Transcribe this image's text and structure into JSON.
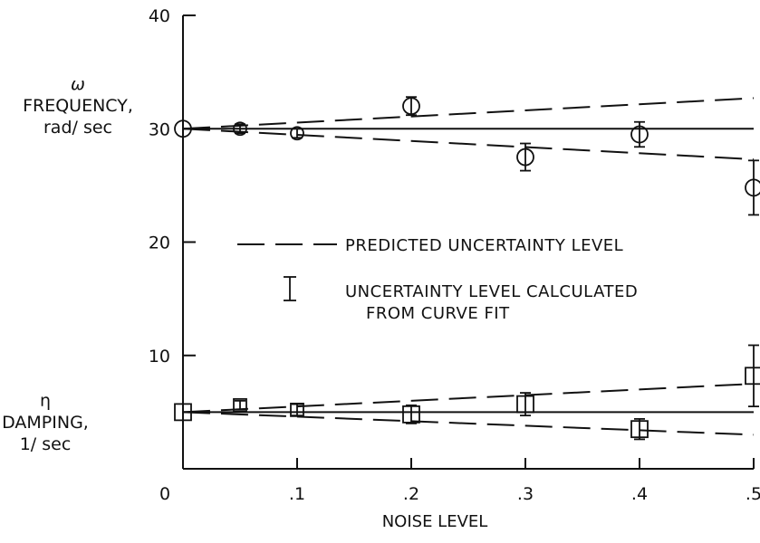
{
  "chart_data": {
    "type": "scatter",
    "xlabel": "NOISE LEVEL",
    "x_ticks": [
      {
        "value": 0,
        "label": "0"
      },
      {
        "value": 0.1,
        "label": ".1"
      },
      {
        "value": 0.2,
        "label": ".2"
      },
      {
        "value": 0.3,
        "label": ".3"
      },
      {
        "value": 0.4,
        "label": ".4"
      },
      {
        "value": 0.5,
        "label": ".5"
      }
    ],
    "y_ticks": [
      {
        "value": 10,
        "label": "10"
      },
      {
        "value": 20,
        "label": "20"
      },
      {
        "value": 30,
        "label": "30"
      },
      {
        "value": 40,
        "label": "40"
      }
    ],
    "xlim": [
      0,
      0.5
    ],
    "ylim": [
      0,
      40
    ],
    "grid": false,
    "y_groups": {
      "frequency": {
        "symbol": "ω",
        "label": "FREQUENCY,",
        "unit": "rad/ sec"
      },
      "damping": {
        "symbol": "η",
        "label": "DAMPING,",
        "unit": "1/ sec"
      }
    },
    "legend": {
      "predicted": "PREDICTED UNCERTAINTY LEVEL",
      "calculated_line1": "UNCERTAINTY LEVEL CALCULATED",
      "calculated_line2": "FROM CURVE FIT"
    },
    "series": [
      {
        "group": "frequency",
        "marker": "circle",
        "points": [
          {
            "x": 0,
            "y": 30.0,
            "err": 0
          },
          {
            "x": 0.05,
            "y": 30.0,
            "err": 0.4
          },
          {
            "x": 0.1,
            "y": 29.6,
            "err": 0.4
          },
          {
            "x": 0.2,
            "y": 32.0,
            "err": 0.8
          },
          {
            "x": 0.3,
            "y": 27.5,
            "err": 1.2
          },
          {
            "x": 0.4,
            "y": 29.5,
            "err": 1.1
          },
          {
            "x": 0.5,
            "y": 24.8,
            "err": 2.4
          }
        ],
        "true_value": 30.0,
        "predicted_bounds": {
          "at_x": [
            0,
            0.5
          ],
          "upper": [
            30.0,
            32.7
          ],
          "lower": [
            30.0,
            27.3
          ]
        }
      },
      {
        "group": "damping",
        "marker": "square",
        "points": [
          {
            "x": 0,
            "y": 5.0,
            "err": 0
          },
          {
            "x": 0.05,
            "y": 5.6,
            "err": 0.4
          },
          {
            "x": 0.1,
            "y": 5.2,
            "err": 0.5
          },
          {
            "x": 0.2,
            "y": 4.8,
            "err": 0.8
          },
          {
            "x": 0.3,
            "y": 5.7,
            "err": 1.0
          },
          {
            "x": 0.4,
            "y": 3.5,
            "err": 0.9
          },
          {
            "x": 0.5,
            "y": 8.2,
            "err": 2.7
          }
        ],
        "true_value": 5.0,
        "predicted_bounds": {
          "at_x": [
            0,
            0.5
          ],
          "upper": [
            5.0,
            7.5
          ],
          "lower": [
            5.0,
            3.0
          ]
        }
      }
    ]
  }
}
